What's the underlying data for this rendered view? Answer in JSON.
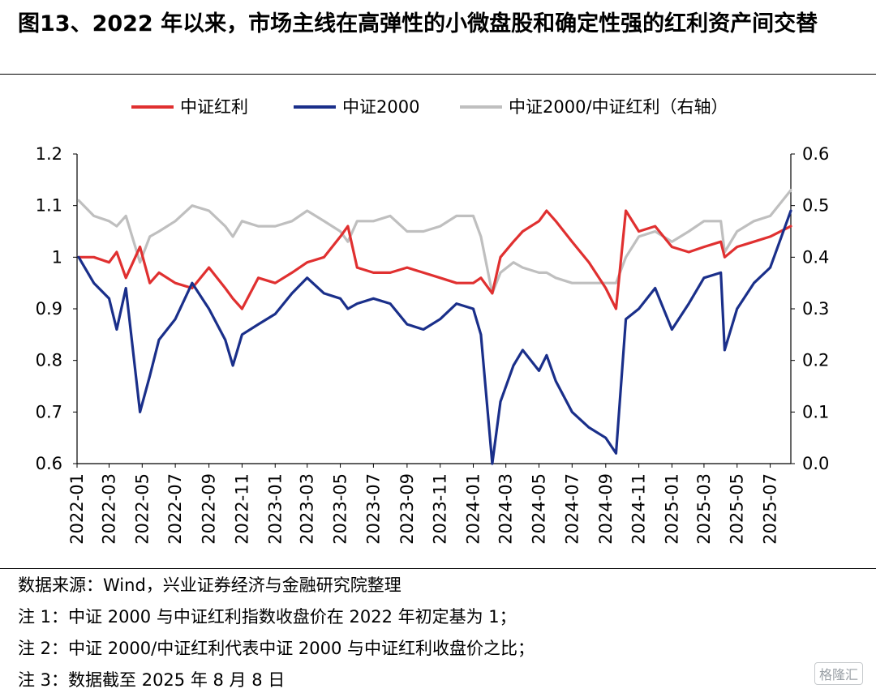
{
  "title": "图13、2022 年以来，市场主线在高弹性的小微盘股和确定性强的红利资产间交替",
  "notes": [
    "数据来源：Wind，兴业证券经济与金融研究院整理",
    "注 1：中证 2000 与中证红利指数收盘价在 2022 年初定基为 1；",
    "注 2：中证 2000/中证红利代表中证 2000 与中证红利收盘价之比；",
    "注 3：数据截至 2025 年 8 月 8 日"
  ],
  "watermark": "格隆汇",
  "chart_data": {
    "type": "line",
    "title": "",
    "legend_position": "top",
    "grid": false,
    "x_ticks": [
      "2022-01",
      "2022-03",
      "2022-05",
      "2022-07",
      "2022-09",
      "2022-11",
      "2023-01",
      "2023-03",
      "2023-05",
      "2023-07",
      "2023-09",
      "2023-11",
      "2024-01",
      "2024-03",
      "2024-05",
      "2024-07",
      "2024-09",
      "2024-11",
      "2025-01",
      "2025-03",
      "2025-05",
      "2025-07"
    ],
    "x_range": [
      "2022-01-01",
      "2025-08-08"
    ],
    "y_left": {
      "range": [
        0.6,
        1.2
      ],
      "ticks": [
        "0.6",
        "0.7",
        "0.8",
        "0.9",
        "1",
        "1.1",
        "1.2"
      ]
    },
    "y_right": {
      "range": [
        0.0,
        0.6
      ],
      "ticks": [
        "0.0",
        "0.1",
        "0.2",
        "0.3",
        "0.4",
        "0.5",
        "0.6"
      ]
    },
    "x": [
      "2022-01-04",
      "2022-02-01",
      "2022-03-01",
      "2022-03-15",
      "2022-04-01",
      "2022-04-27",
      "2022-05-15",
      "2022-06-01",
      "2022-07-01",
      "2022-08-01",
      "2022-09-01",
      "2022-10-01",
      "2022-10-15",
      "2022-11-01",
      "2022-12-01",
      "2023-01-01",
      "2023-02-01",
      "2023-03-01",
      "2023-04-01",
      "2023-05-01",
      "2023-05-15",
      "2023-06-01",
      "2023-07-01",
      "2023-08-01",
      "2023-09-01",
      "2023-10-01",
      "2023-11-01",
      "2023-12-01",
      "2024-01-01",
      "2024-01-15",
      "2024-02-05",
      "2024-02-20",
      "2024-03-15",
      "2024-04-01",
      "2024-05-01",
      "2024-05-15",
      "2024-06-01",
      "2024-07-01",
      "2024-08-01",
      "2024-09-01",
      "2024-09-20",
      "2024-10-08",
      "2024-11-01",
      "2024-12-01",
      "2025-01-01",
      "2025-02-01",
      "2025-03-01",
      "2025-04-01",
      "2025-04-08",
      "2025-05-01",
      "2025-06-01",
      "2025-07-01",
      "2025-08-08"
    ],
    "series": [
      {
        "name": "中证红利",
        "axis": "left",
        "color": "#e03030",
        "values": [
          1.0,
          1.0,
          0.99,
          1.01,
          0.96,
          1.02,
          0.95,
          0.97,
          0.95,
          0.94,
          0.98,
          0.94,
          0.92,
          0.9,
          0.96,
          0.95,
          0.97,
          0.99,
          1.0,
          1.04,
          1.06,
          0.98,
          0.97,
          0.97,
          0.98,
          0.97,
          0.96,
          0.95,
          0.95,
          0.96,
          0.93,
          1.0,
          1.03,
          1.05,
          1.07,
          1.09,
          1.07,
          1.03,
          0.99,
          0.94,
          0.9,
          1.09,
          1.05,
          1.06,
          1.02,
          1.01,
          1.02,
          1.03,
          1.0,
          1.02,
          1.03,
          1.04,
          1.06
        ]
      },
      {
        "name": "中证2000",
        "axis": "left",
        "color": "#1a2f8a",
        "values": [
          1.0,
          0.95,
          0.92,
          0.86,
          0.94,
          0.7,
          0.77,
          0.84,
          0.88,
          0.95,
          0.9,
          0.84,
          0.79,
          0.85,
          0.87,
          0.89,
          0.93,
          0.96,
          0.93,
          0.92,
          0.9,
          0.91,
          0.92,
          0.91,
          0.87,
          0.86,
          0.88,
          0.91,
          0.9,
          0.85,
          0.6,
          0.72,
          0.79,
          0.82,
          0.78,
          0.81,
          0.76,
          0.7,
          0.67,
          0.65,
          0.62,
          0.88,
          0.9,
          0.94,
          0.86,
          0.91,
          0.96,
          0.97,
          0.82,
          0.9,
          0.95,
          0.98,
          1.09
        ]
      },
      {
        "name": "中证2000/中证红利（右轴）",
        "axis": "right",
        "color": "#bfbfbf",
        "values": [
          0.51,
          0.48,
          0.47,
          0.46,
          0.48,
          0.39,
          0.44,
          0.45,
          0.47,
          0.5,
          0.49,
          0.46,
          0.44,
          0.47,
          0.46,
          0.46,
          0.47,
          0.49,
          0.47,
          0.45,
          0.43,
          0.47,
          0.47,
          0.48,
          0.45,
          0.45,
          0.46,
          0.48,
          0.48,
          0.44,
          0.33,
          0.37,
          0.39,
          0.38,
          0.37,
          0.37,
          0.36,
          0.35,
          0.35,
          0.35,
          0.35,
          0.4,
          0.44,
          0.45,
          0.43,
          0.45,
          0.47,
          0.47,
          0.41,
          0.45,
          0.47,
          0.48,
          0.53
        ]
      }
    ]
  }
}
